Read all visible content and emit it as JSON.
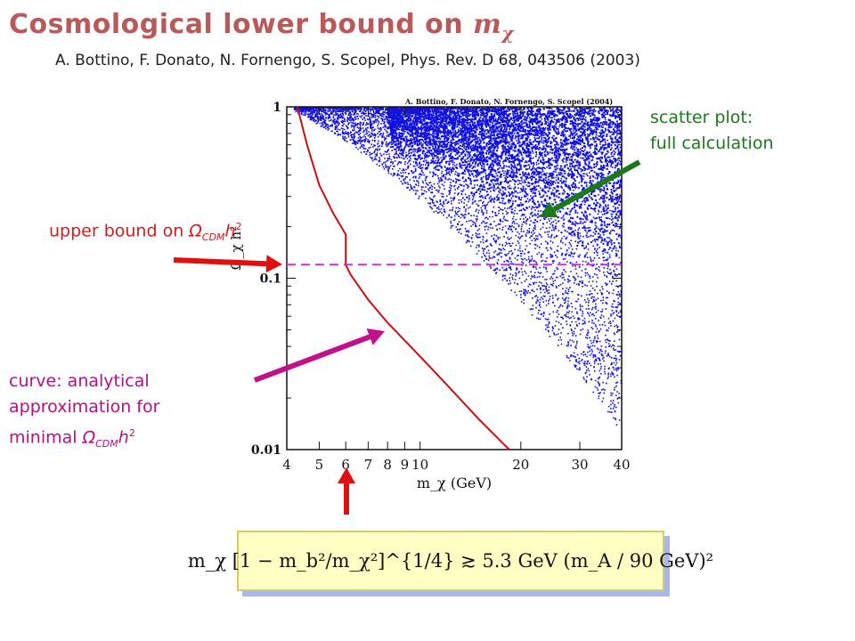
{
  "title": {
    "text": "Cosmological lower bound on ",
    "symbol": "m",
    "subscript": "χ"
  },
  "reference": "A. Bottino, F. Donato, N. Fornengo, S. Scopel, Phys. Rev. D 68, 043506 (2003)",
  "annotations": {
    "scatter": {
      "line1": "scatter plot:",
      "line2": "full calculation"
    },
    "upper_bound": {
      "text": "upper bound on ",
      "sym": "Ω",
      "sub": "CDM",
      "h": "h",
      "sup": "2"
    },
    "curve": {
      "line1": "curve: analytical",
      "line2": "approximation for",
      "line3": "minimal ",
      "sym": "Ω",
      "sub": "CDM",
      "h": "h",
      "sup": "2"
    }
  },
  "formula": "m_χ [1 − m_b²/m_χ²]^{1/4} ≳ 5.3 GeV (m_A / 90 GeV)²",
  "colors": {
    "title": "#b85a5a",
    "scatter": "#1010e0",
    "curve": "#c81010",
    "bound": "#d030d0",
    "green_arrow": "#1a7a1a",
    "red_arrow": "#e01010",
    "magenta_arrow": "#c0108c"
  },
  "chart_data": {
    "type": "scatter",
    "inner_title": "A. Bottino, F. Donato, N. Fornengo, S. Scopel (2004)",
    "xlabel": "m_χ (GeV)",
    "ylabel": "Ω_χ h²",
    "xscale": "log",
    "yscale": "log",
    "xlim": [
      4,
      40
    ],
    "ylim": [
      0.01,
      1
    ],
    "xticks": [
      "4",
      "5",
      "6",
      "7",
      "8",
      "9",
      "10",
      "20",
      "30",
      "40"
    ],
    "xtick_values": [
      4,
      5,
      6,
      7,
      8,
      9,
      10,
      20,
      30,
      40
    ],
    "yticks": [
      "1",
      "0.1",
      "0.01"
    ],
    "ytick_values": [
      1,
      0.1,
      0.01
    ],
    "upper_bound": 0.12,
    "curve": {
      "name": "analytical approximation for minimal Ω_CDM h²",
      "x": [
        4.3,
        4.6,
        5.0,
        5.5,
        6.0,
        6.0,
        6.2,
        7.0,
        8.0,
        10.0,
        12.0,
        15.0,
        18.0,
        18.5
      ],
      "y": [
        1.0,
        0.6,
        0.35,
        0.24,
        0.18,
        0.12,
        0.105,
        0.075,
        0.055,
        0.035,
        0.024,
        0.015,
        0.0105,
        0.01
      ]
    },
    "scatter": {
      "name": "full calculation",
      "points": 6000,
      "min_x_at_top": 4.5
    }
  }
}
